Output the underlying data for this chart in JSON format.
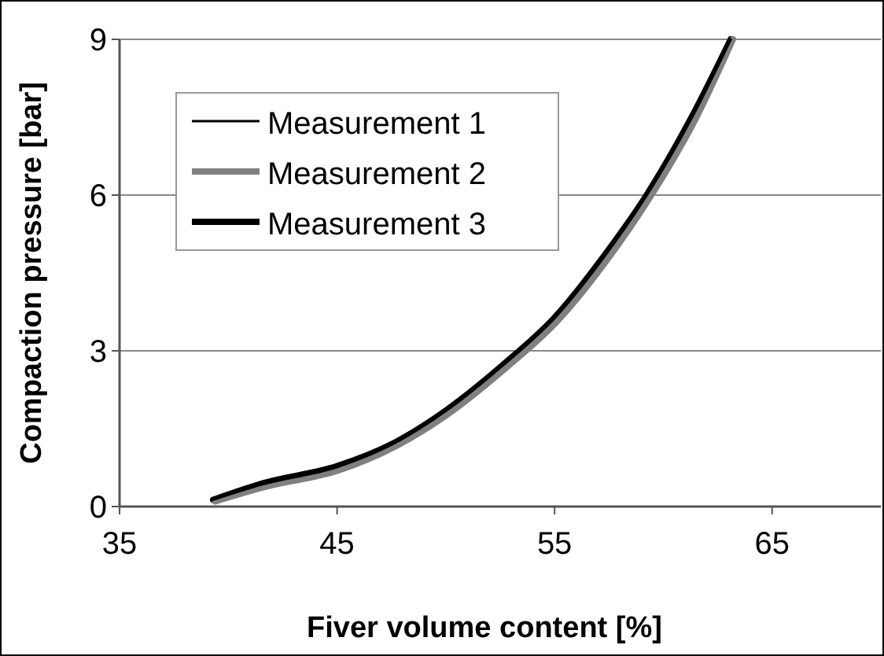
{
  "chart_data": {
    "type": "line",
    "xlabel": "Fiver volume content [%]",
    "ylabel": "Compaction pressure [bar]",
    "xlim": [
      35,
      70
    ],
    "xticks": [
      35,
      45,
      55,
      65
    ],
    "ylim": [
      0,
      9
    ],
    "yticks": [
      0,
      3,
      6,
      9
    ],
    "grid": "y",
    "legend": "top left",
    "series": [
      {
        "name": "Measurement 1",
        "color": "#000000",
        "x": [
          39.3,
          41.6,
          45,
          47.5,
          50,
          52.6,
          55,
          57.4,
          59.2,
          61.3,
          63.1
        ],
        "values": [
          0.13,
          0.43,
          0.76,
          1.19,
          1.84,
          2.71,
          3.63,
          4.88,
          5.97,
          7.48,
          9
        ]
      },
      {
        "name": "Measurement 2",
        "color": "#808080",
        "x": [
          39.4,
          41.7,
          45.1,
          47.6,
          50.1,
          52.7,
          55.1,
          57.5,
          59.3,
          61.4,
          63.2
        ],
        "values": [
          0.1,
          0.38,
          0.7,
          1.14,
          1.78,
          2.65,
          3.56,
          4.8,
          5.9,
          7.4,
          9
        ]
      },
      {
        "name": "Measurement 3",
        "color": "#000000",
        "x": [
          39.3,
          41.6,
          45,
          47.5,
          50,
          52.6,
          55,
          57.4,
          59.2,
          61.3,
          63.1
        ],
        "values": [
          0.13,
          0.45,
          0.78,
          1.2,
          1.85,
          2.72,
          3.64,
          4.9,
          5.98,
          7.5,
          9
        ]
      }
    ]
  }
}
